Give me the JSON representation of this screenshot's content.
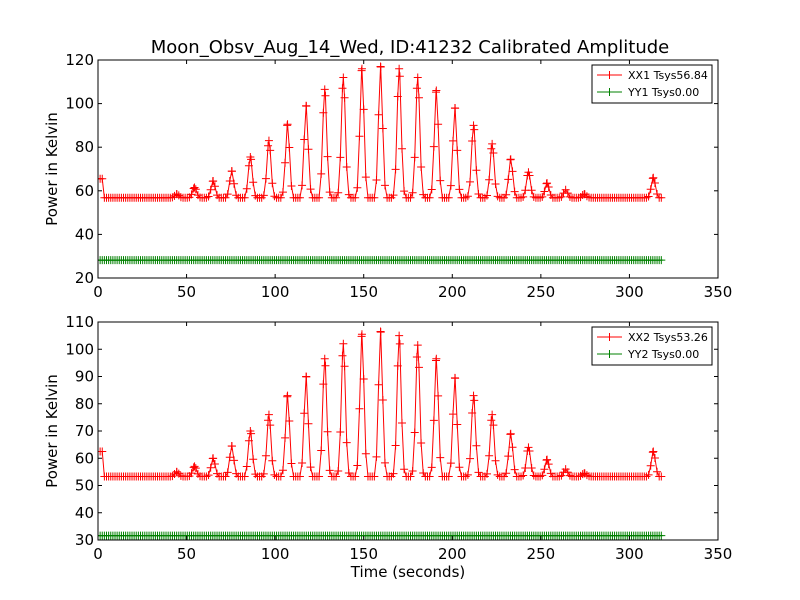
{
  "figure": {
    "title": "Moon_Obsv_Aug_14_Wed, ID:41232 Calibrated Amplitude"
  },
  "chart_data": [
    {
      "type": "line",
      "title": "Moon_Obsv_Aug_14_Wed, ID:41232 Calibrated Amplitude",
      "xlabel": "",
      "ylabel": "Power in Kelvin",
      "xlim": [
        0,
        350
      ],
      "ylim": [
        20,
        120
      ],
      "xticks": [
        0,
        50,
        100,
        150,
        200,
        250,
        300,
        350
      ],
      "yticks": [
        20,
        40,
        60,
        80,
        100,
        120
      ],
      "grid": false,
      "legend_position": "top-right",
      "marker": "+",
      "series": [
        {
          "name": "XX1 Tsys56.84",
          "color": "#ff0000",
          "baseline": 56.8,
          "x_range": [
            0,
            318
          ],
          "sample_step": 1.2,
          "start_level": 65.5,
          "peaks": [
            [
              44.5,
              58.5
            ],
            [
              54.5,
              61.5
            ],
            [
              65,
              64.5
            ],
            [
              75.5,
              69
            ],
            [
              86,
              75.5
            ],
            [
              96.5,
              83
            ],
            [
              107,
              90.5
            ],
            [
              117.5,
              99
            ],
            [
              128,
              106.5
            ],
            [
              138.5,
              112
            ],
            [
              149,
              116
            ],
            [
              159.5,
              117
            ],
            [
              170,
              116
            ],
            [
              180.5,
              112
            ],
            [
              191,
              106
            ],
            [
              201.5,
              98
            ],
            [
              212,
              90
            ],
            [
              222.5,
              81.5
            ],
            [
              233,
              74.5
            ],
            [
              243,
              68.5
            ],
            [
              253.5,
              63.5
            ],
            [
              264,
              60.5
            ],
            [
              274.5,
              58.5
            ],
            [
              313.5,
              66
            ]
          ]
        },
        {
          "name": "YY1 Tsys0.00",
          "color": "#008000",
          "baseline": 28.2,
          "x_range": [
            0,
            318
          ],
          "sample_step": 1.2
        }
      ]
    },
    {
      "type": "line",
      "title": "",
      "xlabel": "Time (seconds)",
      "ylabel": "Power in Kelvin",
      "xlim": [
        0,
        350
      ],
      "ylim": [
        30,
        110
      ],
      "xticks": [
        0,
        50,
        100,
        150,
        200,
        250,
        300,
        350
      ],
      "yticks": [
        30,
        40,
        50,
        60,
        70,
        80,
        90,
        100,
        110
      ],
      "grid": false,
      "legend_position": "top-right",
      "marker": "+",
      "series": [
        {
          "name": "XX2 Tsys53.26",
          "color": "#ff0000",
          "baseline": 53.3,
          "x_range": [
            0,
            318
          ],
          "sample_step": 1.2,
          "start_level": 62.5,
          "peaks": [
            [
              44.5,
              55
            ],
            [
              54.5,
              57
            ],
            [
              65,
              60
            ],
            [
              75.5,
              64.5
            ],
            [
              86,
              70
            ],
            [
              96.5,
              76
            ],
            [
              107,
              83
            ],
            [
              117.5,
              90
            ],
            [
              128,
              96.5
            ],
            [
              138.5,
              102
            ],
            [
              149,
              105.5
            ],
            [
              159.5,
              106.5
            ],
            [
              170,
              105
            ],
            [
              180.5,
              101.5
            ],
            [
              191,
              96.5
            ],
            [
              201.5,
              89.5
            ],
            [
              212,
              83
            ],
            [
              222.5,
              76
            ],
            [
              233,
              69
            ],
            [
              243,
              64
            ],
            [
              253.5,
              59.5
            ],
            [
              264,
              56
            ],
            [
              274.5,
              54.5
            ],
            [
              313.5,
              62.5
            ]
          ]
        },
        {
          "name": "YY2 Tsys0.00",
          "color": "#008000",
          "baseline": 31.6,
          "x_range": [
            0,
            318
          ],
          "sample_step": 1.2
        }
      ]
    }
  ]
}
